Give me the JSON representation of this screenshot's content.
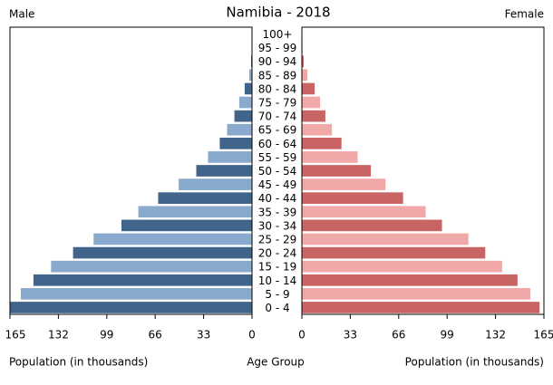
{
  "chart_data": {
    "type": "pyramid",
    "title": "Namibia - 2018",
    "xlabel": "Population (in thousands)",
    "ylabel": "Age Group",
    "categories": [
      "0 - 4",
      "5 - 9",
      "10 - 14",
      "15 - 19",
      "20 - 24",
      "25 - 29",
      "30 - 34",
      "35 - 39",
      "40 - 44",
      "45 - 49",
      "50 - 54",
      "55 - 59",
      "60 - 64",
      "65 - 69",
      "70 - 74",
      "75 - 79",
      "80 - 84",
      "85 - 89",
      "90 - 94",
      "95 - 99",
      "100+"
    ],
    "series": [
      {
        "name": "Male",
        "colors": [
          "#41648a",
          "#8aaacd"
        ],
        "values": [
          165,
          157.6,
          149,
          137,
          122,
          108,
          89,
          77.5,
          64,
          50,
          38,
          30,
          22,
          17,
          12,
          8.7,
          5,
          1.9,
          0.6,
          0.2,
          0.05
        ]
      },
      {
        "name": "Female",
        "colors": [
          "#c86464",
          "#f0a8a8"
        ],
        "values": [
          162,
          155.7,
          147,
          136.5,
          125,
          113.5,
          95.5,
          84.4,
          69,
          57,
          47,
          38,
          27,
          20.5,
          16,
          12.4,
          8.7,
          3.7,
          1.2,
          0.4,
          0.1
        ]
      }
    ],
    "xlim": [
      0,
      165
    ],
    "xticks": [
      0,
      33,
      66,
      99,
      132,
      165
    ]
  }
}
